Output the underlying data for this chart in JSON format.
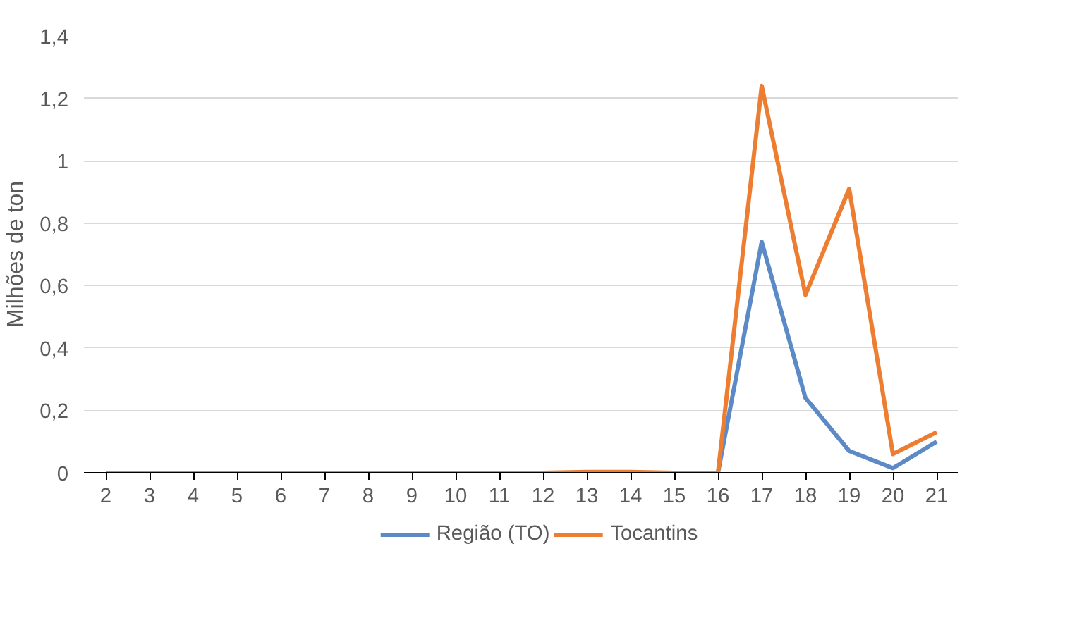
{
  "chart_data": {
    "type": "line",
    "ylabel": "Milhões de ton",
    "categories": [
      "2",
      "3",
      "4",
      "5",
      "6",
      "7",
      "8",
      "9",
      "10",
      "11",
      "12",
      "13",
      "14",
      "15",
      "16",
      "17",
      "18",
      "19",
      "20",
      "21"
    ],
    "series": [
      {
        "name": "Região (TO)",
        "color": "#5b8ac6",
        "values": [
          null,
          null,
          null,
          null,
          null,
          null,
          null,
          null,
          null,
          null,
          null,
          null,
          null,
          null,
          0,
          0.74,
          0.24,
          0.07,
          0.015,
          0.1
        ]
      },
      {
        "name": "Tocantins",
        "color": "#ed7d31",
        "values": [
          0,
          0,
          0,
          0,
          0,
          0,
          0,
          0,
          0,
          0,
          0,
          0.003,
          0.003,
          0,
          0,
          1.24,
          0.57,
          0.91,
          0.06,
          0.13
        ]
      }
    ],
    "ylim": [
      0,
      1.4
    ],
    "yticks": [
      0,
      {
        "value": 0.2,
        "label": "0,2"
      },
      {
        "value": 0.4,
        "label": "0,4"
      },
      {
        "value": 0.6,
        "label": "0,6"
      },
      {
        "value": 0.8,
        "label": "0,8"
      },
      1,
      {
        "value": 1.2,
        "label": "1,2"
      },
      {
        "value": 1.4,
        "label": "1,4"
      }
    ],
    "grid": "y",
    "legend": "bottom",
    "marker": "none",
    "line_style": "solid"
  }
}
